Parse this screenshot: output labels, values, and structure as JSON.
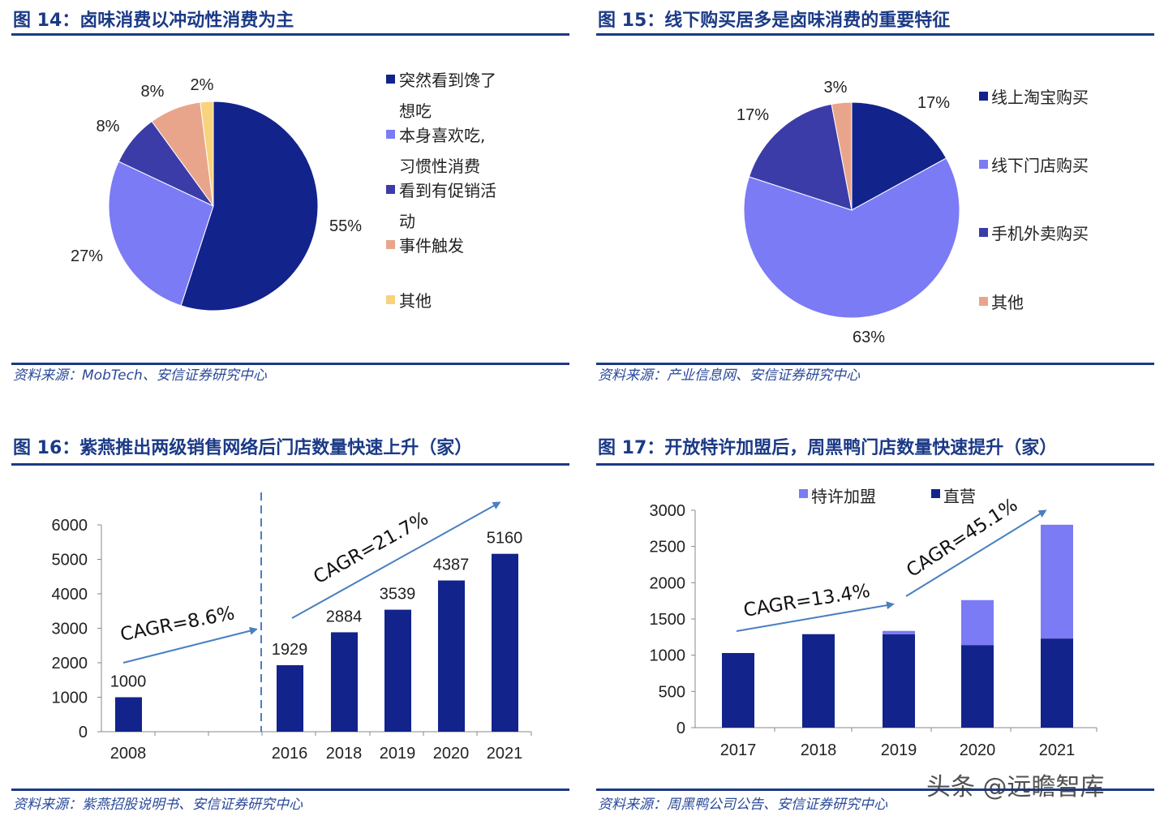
{
  "colors": {
    "title": "#1b3a86",
    "rule": "#1b3a86",
    "dark": "#12238c",
    "light": "#7b7bf5",
    "mid": "#3c3ca8",
    "salmon": "#e9a58c",
    "yellow": "#f8d37c",
    "arrow": "#4a7fc0"
  },
  "watermark": "头条 @远瞻智库",
  "chart_data": [
    {
      "type": "pie",
      "title": "图 14：卤味消费以冲动性消费为主",
      "source": "资料来源：MobTech、安信证券研究中心",
      "legend_lines": [
        [
          "突然看到馋了",
          "想吃"
        ],
        [
          "本身喜欢吃,",
          "习惯性消费"
        ],
        [
          "看到有促销活",
          "动"
        ],
        [
          "事件触发"
        ],
        [
          "其他"
        ]
      ],
      "slices": [
        {
          "name": "突然看到馋了想吃",
          "value": 55,
          "label": "55%"
        },
        {
          "name": "本身喜欢吃,习惯性消费",
          "value": 27,
          "label": "27%"
        },
        {
          "name": "看到有促销活动",
          "value": 8,
          "label": "8%"
        },
        {
          "name": "事件触发",
          "value": 8,
          "label": "8%"
        },
        {
          "name": "其他",
          "value": 2,
          "label": "2%"
        }
      ],
      "legend_placement": "right"
    },
    {
      "type": "pie",
      "title": "图 15：线下购买居多是卤味消费的重要特征",
      "source": "资料来源：产业信息网、安信证券研究中心",
      "slices": [
        {
          "name": "线上淘宝购买",
          "value": 17,
          "label": "17%"
        },
        {
          "name": "线下门店购买",
          "value": 63,
          "label": "63%"
        },
        {
          "name": "手机外卖购买",
          "value": 17,
          "label": "17%"
        },
        {
          "name": "其他",
          "value": 3,
          "label": "3%"
        }
      ],
      "legend_placement": "right"
    },
    {
      "type": "bar",
      "title": "图 16：紫燕推出两级销售网络后门店数量快速上升（家）",
      "source": "资料来源：紫燕招股说明书、安信证券研究中心",
      "categories": [
        "2008",
        "2016",
        "2018",
        "2019",
        "2020",
        "2021"
      ],
      "values": [
        1000,
        1929,
        2884,
        3539,
        4387,
        5160
      ],
      "labels": [
        "1000",
        "1929",
        "2884",
        "3539",
        "4387",
        "5160"
      ],
      "yticks": [
        "0",
        "1000",
        "2000",
        "3000",
        "4000",
        "5000",
        "6000"
      ],
      "ylim": [
        0,
        6000
      ],
      "annotations": [
        "CAGR=8.6%",
        "CAGR=21.7%"
      ]
    },
    {
      "type": "bar",
      "stacked": true,
      "title": "图 17：开放特许加盟后，周黑鸭门店数量快速提升（家）",
      "source": "资料来源：周黑鸭公司公告、安信证券研究中心",
      "categories": [
        "2017",
        "2018",
        "2019",
        "2020",
        "2021"
      ],
      "series": [
        {
          "name": "直营",
          "values": [
            1030,
            1290,
            1290,
            1140,
            1230
          ]
        },
        {
          "name": "特许加盟",
          "values": [
            0,
            0,
            45,
            620,
            1570
          ]
        }
      ],
      "legend": [
        "特许加盟",
        "直营"
      ],
      "legend_placement": "top",
      "yticks": [
        "0",
        "500",
        "1000",
        "1500",
        "2000",
        "2500",
        "3000"
      ],
      "ylim": [
        0,
        3000
      ],
      "annotations": [
        "CAGR=13.4%",
        "CAGR=45.1%"
      ]
    }
  ]
}
